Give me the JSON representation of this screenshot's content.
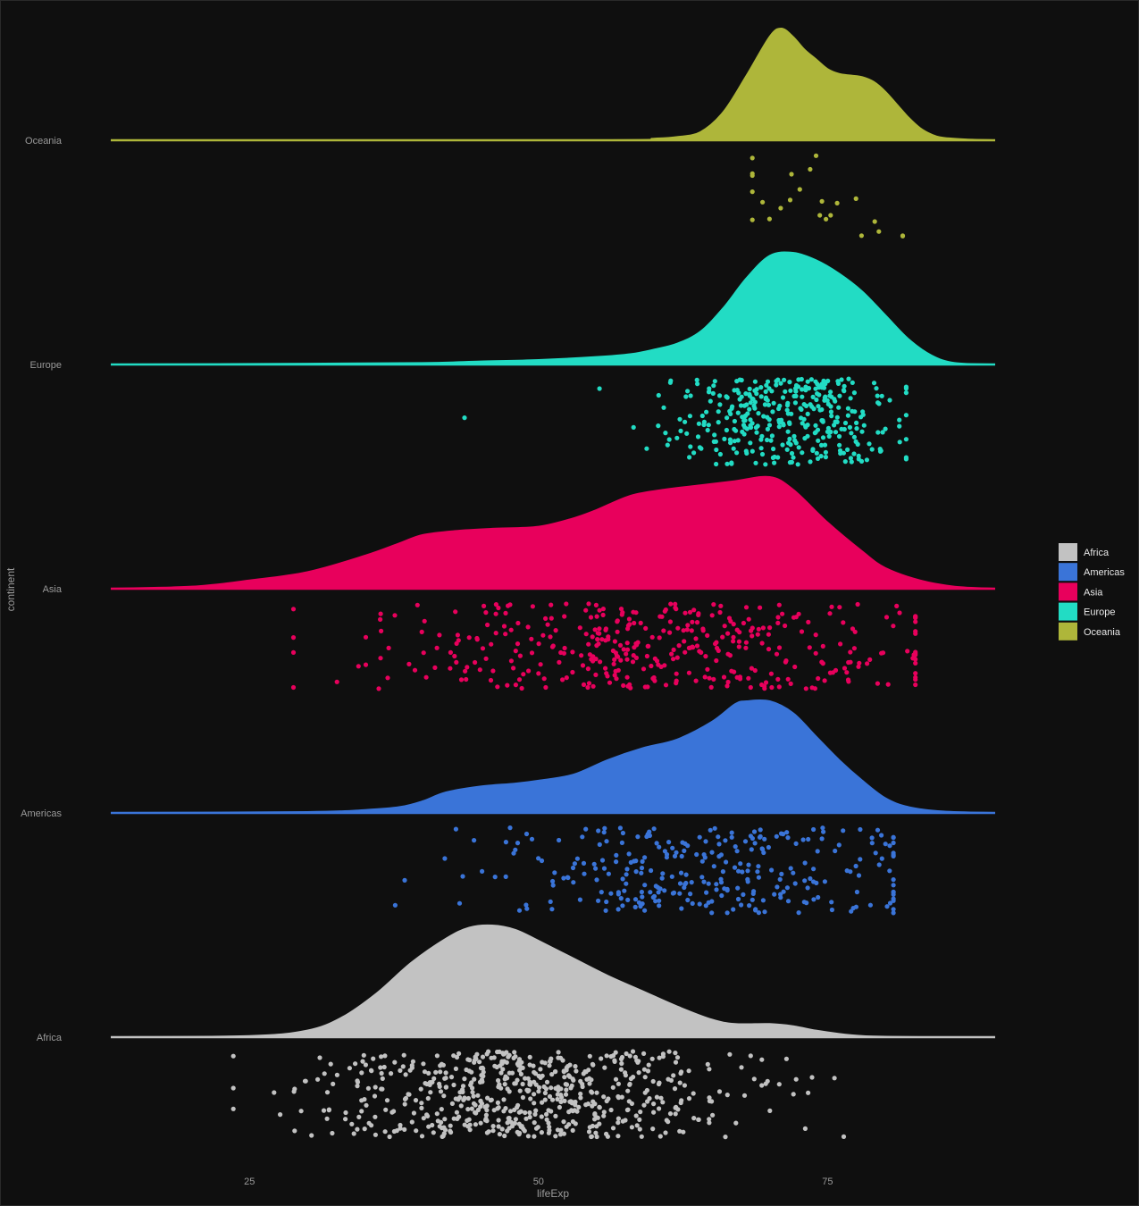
{
  "chart_data": {
    "type": "raincloud",
    "xlabel": "lifeExp",
    "ylabel": "continent",
    "xlim": [
      13,
      89.5
    ],
    "x_ticks": [
      "25",
      "50",
      "75"
    ],
    "x_tick_values": [
      25,
      50,
      75
    ],
    "categories": [
      "Oceania",
      "Europe",
      "Asia",
      "Americas",
      "Africa"
    ],
    "legend": {
      "position": "right",
      "entries": [
        "Africa",
        "Americas",
        "Asia",
        "Europe",
        "Oceania"
      ]
    },
    "colors": {
      "Africa": "#c2c2c2",
      "Americas": "#3a74d8",
      "Asia": "#e8005c",
      "Europe": "#22dcc4",
      "Oceania": "#aeb63a"
    },
    "background": "#0f0f0f",
    "grid": false,
    "series": [
      {
        "name": "Oceania",
        "density_x": [
          13,
          55,
          60,
          62,
          64,
          66,
          68,
          70,
          71,
          72,
          73,
          74,
          75,
          76,
          77,
          78,
          79,
          80,
          81,
          82,
          83,
          84,
          85,
          87,
          89.5
        ],
        "density_y": [
          0,
          0,
          0.002,
          0.004,
          0.01,
          0.035,
          0.08,
          0.128,
          0.138,
          0.128,
          0.112,
          0.1,
          0.088,
          0.082,
          0.08,
          0.078,
          0.072,
          0.06,
          0.044,
          0.028,
          0.015,
          0.007,
          0.003,
          0.001,
          0
        ],
        "points": {
          "n": 24,
          "min": 68.5,
          "max": 81.5,
          "mean": 74,
          "sd": 4
        }
      },
      {
        "name": "Europe",
        "density_x": [
          13,
          30,
          40,
          45,
          50,
          55,
          58,
          60,
          62,
          64,
          66,
          68,
          70,
          72,
          74,
          76,
          78,
          80,
          82,
          84,
          86,
          89.5
        ],
        "density_y": [
          0,
          0.0005,
          0.001,
          0.002,
          0.003,
          0.005,
          0.007,
          0.01,
          0.014,
          0.022,
          0.038,
          0.058,
          0.073,
          0.075,
          0.07,
          0.061,
          0.049,
          0.033,
          0.017,
          0.006,
          0.001,
          0
        ],
        "points": {
          "n": 360,
          "min": 43.6,
          "max": 81.8,
          "mean": 71.9,
          "sd": 5.4
        }
      },
      {
        "name": "Asia",
        "density_x": [
          13,
          20,
          25,
          30,
          35,
          38,
          40,
          43,
          46,
          50,
          53,
          55,
          58,
          61,
          64,
          67,
          70,
          72,
          75,
          78,
          80,
          83,
          86,
          89.5
        ],
        "density_y": [
          0,
          0.0005,
          0.002,
          0.004,
          0.008,
          0.011,
          0.013,
          0.014,
          0.0145,
          0.015,
          0.017,
          0.019,
          0.0225,
          0.024,
          0.025,
          0.026,
          0.027,
          0.024,
          0.016,
          0.009,
          0.005,
          0.002,
          0.0005,
          0
        ],
        "points": {
          "n": 396,
          "min": 28.8,
          "max": 82.6,
          "mean": 60,
          "sd": 11.9
        }
      },
      {
        "name": "Americas",
        "density_x": [
          13,
          30,
          35,
          38,
          40,
          42,
          45,
          48,
          50,
          53,
          56,
          59,
          62,
          65,
          67,
          68,
          70,
          72,
          74,
          76,
          78,
          80,
          82,
          85,
          89.5
        ],
        "density_y": [
          0,
          0.0003,
          0.001,
          0.002,
          0.004,
          0.007,
          0.009,
          0.01,
          0.011,
          0.013,
          0.018,
          0.022,
          0.025,
          0.031,
          0.037,
          0.038,
          0.038,
          0.034,
          0.026,
          0.018,
          0.011,
          0.005,
          0.002,
          0.0005,
          0
        ],
        "points": {
          "n": 300,
          "min": 37.6,
          "max": 80.7,
          "mean": 64.7,
          "sd": 9.3
        }
      },
      {
        "name": "Africa",
        "density_x": [
          13,
          25,
          30,
          33,
          36,
          39,
          42,
          44,
          46,
          48,
          50,
          53,
          56,
          59,
          62,
          65,
          67,
          70,
          72,
          74,
          76,
          78,
          80,
          83,
          89.5
        ],
        "density_y": [
          0,
          0.0005,
          0.003,
          0.009,
          0.02,
          0.034,
          0.045,
          0.05,
          0.051,
          0.049,
          0.044,
          0.036,
          0.028,
          0.021,
          0.014,
          0.008,
          0.006,
          0.006,
          0.005,
          0.003,
          0.0015,
          0.0005,
          0.0002,
          0,
          0
        ],
        "points": {
          "n": 624,
          "min": 23.6,
          "max": 76.4,
          "mean": 48.9,
          "sd": 9.2
        }
      }
    ]
  }
}
